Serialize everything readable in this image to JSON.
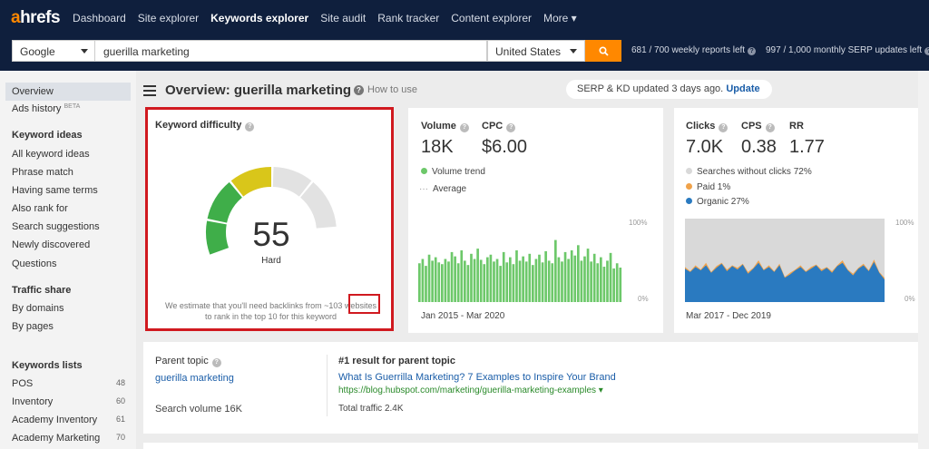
{
  "nav": {
    "logo_a": "a",
    "logo_rest": "hrefs",
    "links": [
      "Dashboard",
      "Site explorer",
      "Keywords explorer",
      "Site audit",
      "Rank tracker",
      "Content explorer",
      "More ▾"
    ]
  },
  "search": {
    "engine": "Google",
    "query": "guerilla marketing",
    "country": "United States",
    "reports_left": "681 / 700 weekly reports left",
    "serp_updates_left": "997 / 1,000 monthly SERP updates left"
  },
  "sidebar": {
    "overview": "Overview",
    "ads_history": "Ads history",
    "beta": "BETA",
    "keyword_ideas_head": "Keyword ideas",
    "keyword_ideas": [
      "All keyword ideas",
      "Phrase match",
      "Having same terms",
      "Also rank for",
      "Search suggestions",
      "Newly discovered",
      "Questions"
    ],
    "traffic_share_head": "Traffic share",
    "traffic_share": [
      "By domains",
      "By pages"
    ],
    "keywords_lists_head": "Keywords lists",
    "lists": [
      {
        "name": "POS",
        "count": "48"
      },
      {
        "name": "Inventory",
        "count": "60"
      },
      {
        "name": "Academy Inventory",
        "count": "61"
      },
      {
        "name": "Academy Marketing",
        "count": "70"
      }
    ]
  },
  "header": {
    "title": "Overview: guerilla marketing",
    "how_to": "How to use",
    "serp_status": "SERP & KD updated 3 days ago.",
    "update": "Update"
  },
  "kd": {
    "label": "Keyword difficulty",
    "value": "55",
    "level": "Hard",
    "note": "We estimate that you'll need backlinks from ~103 websites to rank in the top 10 for this keyword",
    "colors": {
      "green": "#3fae49",
      "yellow": "#d9c61a",
      "grey": "#e2e2e2"
    }
  },
  "volume": {
    "label": "Volume",
    "value": "18K",
    "cpc_label": "CPC",
    "cpc_value": "$6.00",
    "legend_trend": "Volume trend",
    "legend_avg": "Average",
    "axis_top": "100%",
    "axis_bottom": "0%",
    "range": "Jan 2015 - Mar 2020",
    "bar_color": "#6dc86a"
  },
  "chart_data": [
    {
      "type": "bar",
      "series": [
        {
          "name": "Volume trend",
          "values": [
            0.45,
            0.5,
            0.42,
            0.55,
            0.48,
            0.52,
            0.46,
            0.44,
            0.5,
            0.47,
            0.58,
            0.53,
            0.45,
            0.6,
            0.48,
            0.43,
            0.56,
            0.5,
            0.62,
            0.49,
            0.44,
            0.52,
            0.55,
            0.47,
            0.5,
            0.42,
            0.58,
            0.46,
            0.52,
            0.44,
            0.6,
            0.48,
            0.53,
            0.47,
            0.56,
            0.43,
            0.5,
            0.55,
            0.46,
            0.59,
            0.48,
            0.45,
            0.72,
            0.52,
            0.47,
            0.58,
            0.5,
            0.6,
            0.54,
            0.66,
            0.48,
            0.53,
            0.62,
            0.47,
            0.56,
            0.45,
            0.52,
            0.41,
            0.48,
            0.57,
            0.39,
            0.45,
            0.4
          ]
        }
      ],
      "ylim": [
        0,
        1
      ]
    },
    {
      "type": "area",
      "series": [
        {
          "name": "Organic 27%",
          "values": [
            0.4,
            0.36,
            0.42,
            0.38,
            0.44,
            0.35,
            0.41,
            0.46,
            0.37,
            0.43,
            0.39,
            0.45,
            0.34,
            0.4,
            0.47,
            0.38,
            0.42,
            0.36,
            0.44,
            0.29,
            0.33,
            0.38,
            0.42,
            0.36,
            0.4,
            0.44,
            0.37,
            0.41,
            0.35,
            0.43,
            0.47,
            0.38,
            0.32,
            0.4,
            0.44,
            0.37,
            0.48,
            0.35,
            0.27
          ]
        },
        {
          "name": "Paid 1%",
          "values": [
            0.02,
            0.01,
            0.02,
            0.01,
            0.03,
            0.01,
            0.02,
            0.01,
            0.02,
            0.01,
            0.02,
            0.01,
            0.02,
            0.01,
            0.03,
            0.01,
            0.02,
            0.01,
            0.02,
            0.01,
            0.02,
            0.01,
            0.02,
            0.01,
            0.02,
            0.01,
            0.02,
            0.01,
            0.02,
            0.01,
            0.03,
            0.01,
            0.02,
            0.01,
            0.02,
            0.01,
            0.03,
            0.01,
            0.02
          ]
        }
      ],
      "ylim": [
        0,
        1
      ]
    }
  ],
  "clicks": {
    "label": "Clicks",
    "value": "7.0K",
    "cps_label": "CPS",
    "cps_value": "0.38",
    "rr_label": "RR",
    "rr_value": "1.77",
    "legend_no_clicks": "Searches without clicks 72%",
    "legend_paid": "Paid 1%",
    "legend_organic": "Organic 27%",
    "axis_top": "100%",
    "axis_bottom": "0%",
    "range": "Mar 2017 - Dec 2019",
    "colors": {
      "no_clicks": "#d9d9d9",
      "paid": "#f0a24a",
      "organic": "#2a7ac0"
    }
  },
  "parent": {
    "label": "Parent topic",
    "topic": "guerilla marketing",
    "search_volume": "Search volume 16K",
    "result_label": "#1 result for parent topic",
    "result_title": "What Is Guerrilla Marketing? 7 Examples to Inspire Your Brand",
    "result_url": "https://blog.hubspot.com/marketing/guerilla-marketing-examples ▾",
    "total_traffic": "Total traffic 2.4K"
  }
}
